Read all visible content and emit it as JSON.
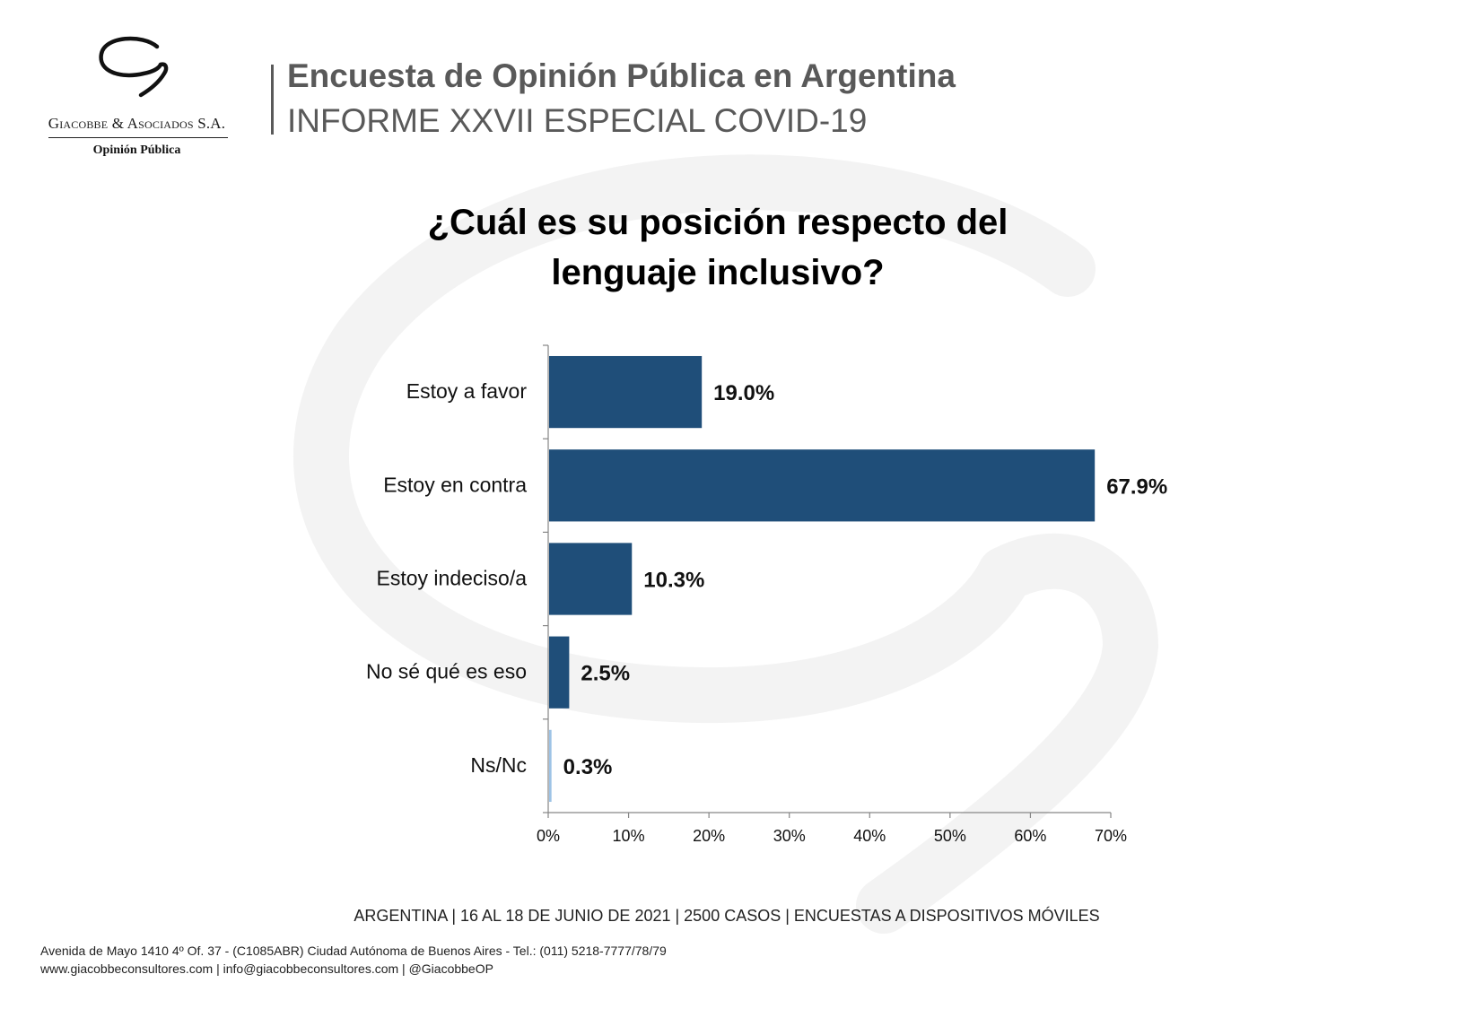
{
  "logo": {
    "company": "Giacobbe & Asociados S.A.",
    "subtitle": "Opinión Pública"
  },
  "header": {
    "title": "Encuesta de Opinión Pública en Argentina",
    "subtitle": "INFORME XXVII ESPECIAL COVID-19"
  },
  "question": {
    "line1": "¿Cuál es su posición respecto del",
    "line2": "lenguaje inclusivo?"
  },
  "chart_data": {
    "type": "bar",
    "orientation": "horizontal",
    "title": "¿Cuál es su posición respecto del lenguaje inclusivo?",
    "categories": [
      "Estoy a favor",
      "Estoy en contra",
      "Estoy indeciso/a",
      "No sé qué es eso",
      "Ns/Nc"
    ],
    "values": [
      19.0,
      67.9,
      10.3,
      2.5,
      0.3
    ],
    "value_labels": [
      "19.0%",
      "67.9%",
      "10.3%",
      "2.5%",
      "0.3%"
    ],
    "xlim": [
      0,
      70
    ],
    "x_ticks": [
      0,
      10,
      20,
      30,
      40,
      50,
      60,
      70
    ],
    "x_tick_labels": [
      "0%",
      "10%",
      "20%",
      "30%",
      "40%",
      "50%",
      "60%",
      "70%"
    ],
    "xlabel": "",
    "ylabel": "",
    "grid": false,
    "legend": "none",
    "colors": {
      "bar": "#1f4e79",
      "bar_last": "#9dc3e6",
      "axis": "#868686"
    }
  },
  "footer": {
    "main": "ARGENTINA | 16 AL 18 DE JUNIO DE 2021 | 2500 CASOS | ENCUESTAS A DISPOSITIVOS MÓVILES",
    "address": "Avenida de Mayo 1410 4º Of. 37 - (C1085ABR) Ciudad Autónoma de Buenos Aires - Tel.: (011) 5218-7777/78/79",
    "contact": "www.giacobbeconsultores.com | info@giacobbeconsultores.com | @GiacobbeOP"
  }
}
